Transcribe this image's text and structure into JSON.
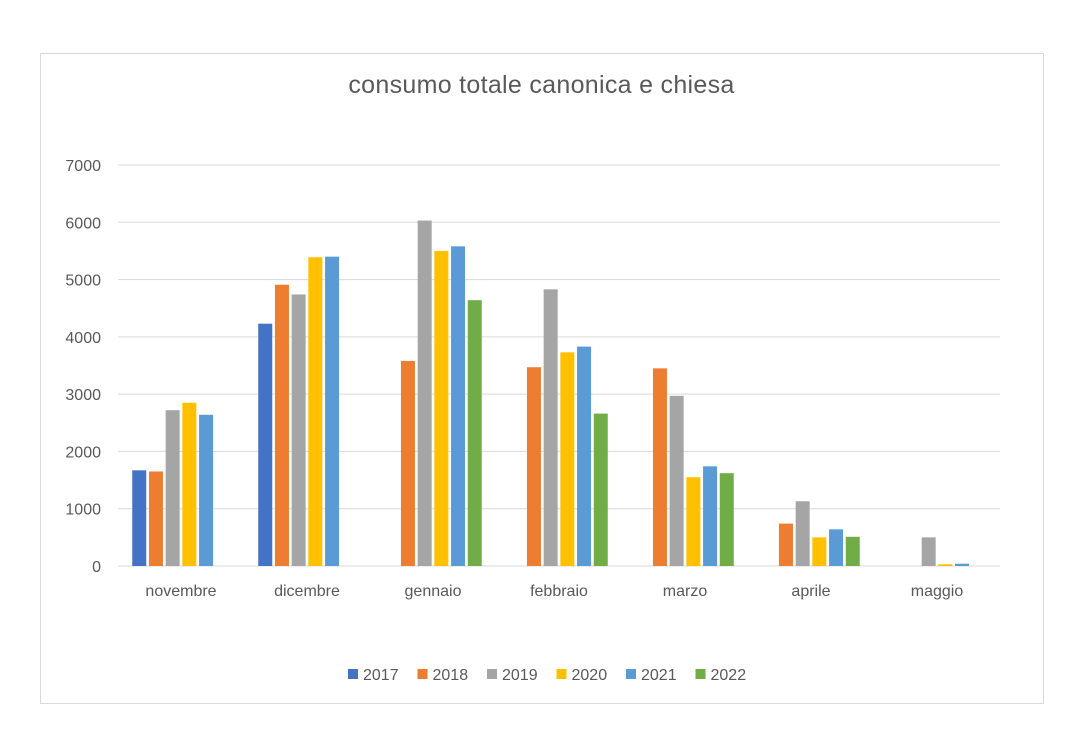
{
  "chart_data": {
    "type": "bar",
    "title": "consumo totale canonica e chiesa",
    "xlabel": "",
    "ylabel": "",
    "ylim": [
      0,
      7000
    ],
    "yticks": [
      0,
      1000,
      2000,
      3000,
      4000,
      5000,
      6000,
      7000
    ],
    "grid": true,
    "legend_position": "bottom",
    "categories": [
      "novembre",
      "dicembre",
      "gennaio",
      "febbraio",
      "marzo",
      "aprile",
      "maggio"
    ],
    "series": [
      {
        "name": "2017",
        "color": "#4472c4",
        "values": [
          1670,
          4230,
          0,
          0,
          0,
          0,
          0
        ]
      },
      {
        "name": "2018",
        "color": "#ed7d31",
        "values": [
          1650,
          4910,
          3580,
          3470,
          3450,
          740,
          0
        ]
      },
      {
        "name": "2019",
        "color": "#a5a5a5",
        "values": [
          2720,
          4740,
          6030,
          4830,
          2970,
          1130,
          500
        ]
      },
      {
        "name": "2020",
        "color": "#ffc000",
        "values": [
          2850,
          5390,
          5500,
          3730,
          1550,
          500,
          30
        ]
      },
      {
        "name": "2021",
        "color": "#5b9bd5",
        "values": [
          2640,
          5400,
          5580,
          3830,
          1740,
          640,
          40
        ]
      },
      {
        "name": "2022",
        "color": "#70ad47",
        "values": [
          null,
          null,
          4640,
          2660,
          1620,
          510,
          null
        ]
      }
    ]
  }
}
